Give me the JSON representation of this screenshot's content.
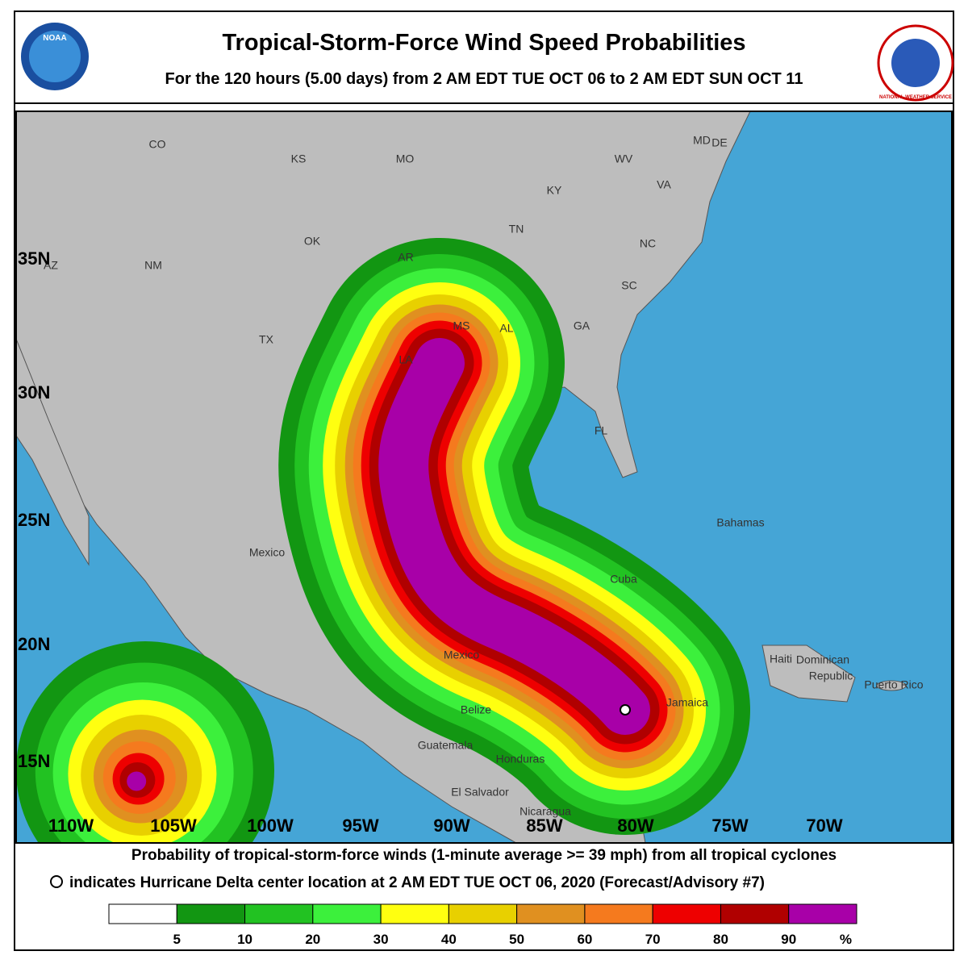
{
  "header": {
    "title": "Tropical-Storm-Force Wind Speed Probabilities",
    "subtitle": "For the 120 hours (5.00 days) from 2 AM EDT TUE OCT 06 to 2 AM EDT SUN OCT 11",
    "logos": [
      "NOAA",
      "NATIONAL WEATHER SERVICE"
    ]
  },
  "map": {
    "lat_labels": [
      "35N",
      "30N",
      "25N",
      "20N",
      "15N"
    ],
    "lon_labels": [
      "110W",
      "105W",
      "100W",
      "95W",
      "90W",
      "85W",
      "80W",
      "75W",
      "70W"
    ],
    "places": [
      "CO",
      "KS",
      "MO",
      "KY",
      "WV",
      "VA",
      "MD",
      "DE",
      "NM",
      "AZ",
      "OK",
      "AR",
      "TN",
      "NC",
      "SC",
      "TX",
      "MS",
      "AL",
      "GA",
      "LA",
      "FL",
      "Mexico",
      "Bahamas",
      "Cuba",
      "Mexico",
      "Belize",
      "Guatemala",
      "Honduras",
      "El Salvador",
      "Nicaragua",
      "Jamaica",
      "Haiti",
      "Dominican",
      "Republic",
      "Puerto Rico"
    ]
  },
  "footer": {
    "description": "Probability of tropical-storm-force winds (1-minute average >= 39 mph) from all tropical cyclones",
    "marker_note": "indicates Hurricane Delta center location at 2 AM EDT TUE OCT 06, 2020 (Forecast/Advisory #7)",
    "legend": {
      "labels": [
        "5",
        "10",
        "20",
        "30",
        "40",
        "50",
        "60",
        "70",
        "80",
        "90",
        "%"
      ],
      "colors": [
        "#ffffff",
        "#129612",
        "#22c222",
        "#3cf03c",
        "#ffff10",
        "#e8d000",
        "#e09020",
        "#f57a1e",
        "#ee0000",
        "#b00000",
        "#a800a8"
      ]
    }
  }
}
